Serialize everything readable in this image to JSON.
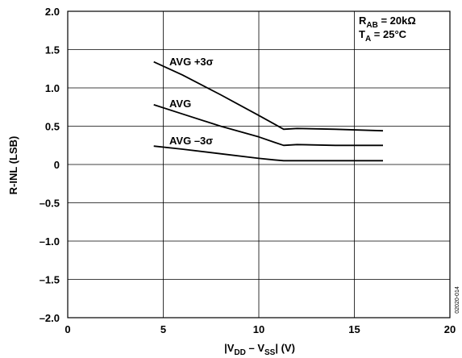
{
  "chart_data": {
    "type": "line",
    "xlabel": {
      "main": "|V",
      "sub1": "DD",
      "mid": " – V",
      "sub2": "SS",
      "end": "| (V)"
    },
    "ylabel": "R-INL (LSB)",
    "xlim": [
      0,
      20
    ],
    "ylim": [
      -2.0,
      2.0
    ],
    "xticks": [
      "0",
      "5",
      "10",
      "15",
      "20"
    ],
    "yticks": [
      "2.0",
      "1.5",
      "1.0",
      "0.5",
      "0",
      "–0.5",
      "–1.0",
      "–1.5",
      "–2.0"
    ],
    "grid": true,
    "conditions": [
      {
        "main": "R",
        "sub": "AB",
        "rest": " = 20kΩ"
      },
      {
        "main": "T",
        "sub": "A",
        "rest": " = 25°C"
      }
    ],
    "series": [
      {
        "name": "AVG +3σ",
        "x": [
          4.5,
          6,
          8,
          10,
          10.8,
          11.3,
          12,
          14,
          16.5
        ],
        "y": [
          1.34,
          1.17,
          0.91,
          0.64,
          0.53,
          0.46,
          0.47,
          0.46,
          0.44
        ]
      },
      {
        "name": "AVG",
        "x": [
          4.5,
          6,
          8,
          10,
          10.8,
          11.3,
          12,
          14,
          16.5
        ],
        "y": [
          0.78,
          0.66,
          0.5,
          0.36,
          0.29,
          0.25,
          0.26,
          0.25,
          0.25
        ]
      },
      {
        "name": "AVG –3σ",
        "x": [
          4.5,
          6,
          8,
          10,
          10.8,
          11.3,
          12,
          14,
          16.5
        ],
        "y": [
          0.24,
          0.2,
          0.14,
          0.08,
          0.06,
          0.05,
          0.05,
          0.05,
          0.05
        ]
      }
    ],
    "figure_id": "02020-014"
  }
}
